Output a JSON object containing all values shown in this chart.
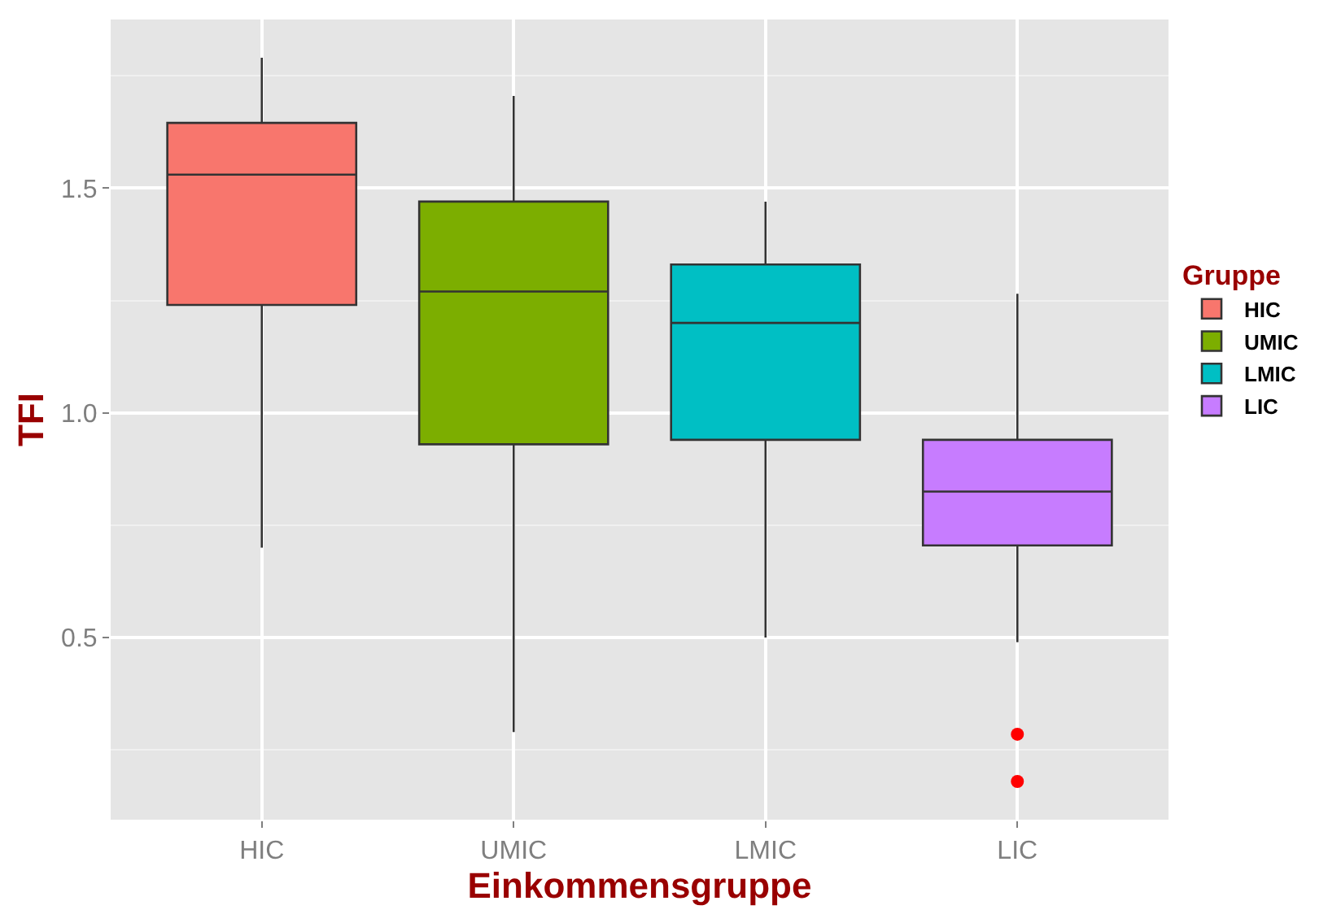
{
  "chart_data": {
    "type": "box",
    "xlabel": "Einkommensgruppe",
    "ylabel": "TFI",
    "legend_title": "Gruppe",
    "legend": "right",
    "grid": true,
    "categories": [
      "HIC",
      "UMIC",
      "LMIC",
      "LIC"
    ],
    "series": [
      {
        "name": "HIC",
        "color": "#f8766d",
        "boxes": [
          {
            "low": 0.7,
            "q1": 1.24,
            "median": 1.53,
            "q3": 1.645,
            "high": 1.79
          },
          null,
          null,
          null
        ]
      },
      {
        "name": "UMIC",
        "color": "#7cae00",
        "boxes": [
          null,
          {
            "low": 0.29,
            "q1": 0.93,
            "median": 1.27,
            "q3": 1.47,
            "high": 1.705
          },
          null,
          null
        ]
      },
      {
        "name": "LMIC",
        "color": "#00bfc4",
        "boxes": [
          null,
          null,
          {
            "low": 0.5,
            "q1": 0.94,
            "median": 1.2,
            "q3": 1.33,
            "high": 1.47
          },
          null
        ]
      },
      {
        "name": "LIC",
        "color": "#c77cff",
        "boxes": [
          null,
          null,
          null,
          {
            "low": 0.49,
            "q1": 0.705,
            "median": 0.825,
            "q3": 0.94,
            "high": 1.265
          }
        ]
      },
      {
        "type": "scatter",
        "x": [
          "LIC",
          "LIC"
        ],
        "values": [
          0.285,
          0.18
        ],
        "color": "#ff0000"
      }
    ],
    "ylim": [
      0.095,
      1.875
    ],
    "yticks": [
      0.5,
      {
        "value": 1,
        "label": "1.0"
      },
      1.5
    ]
  }
}
